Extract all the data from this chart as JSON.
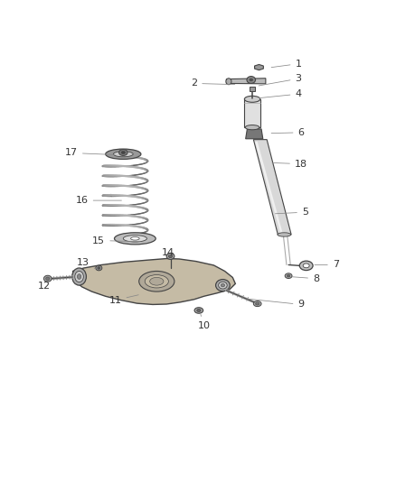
{
  "bg_color": "#ffffff",
  "line_color": "#444444",
  "label_color": "#333333",
  "leader_color": "#888888",
  "label_font": 8.0,
  "parts_labels": {
    "1": [
      0.68,
      0.94,
      0.755,
      0.95
    ],
    "2": [
      0.6,
      0.897,
      0.49,
      0.9
    ],
    "3": [
      0.648,
      0.893,
      0.755,
      0.912
    ],
    "4": [
      0.648,
      0.862,
      0.755,
      0.873
    ],
    "5": [
      0.69,
      0.568,
      0.772,
      0.572
    ],
    "6": [
      0.68,
      0.773,
      0.762,
      0.775
    ],
    "7": [
      0.79,
      0.438,
      0.85,
      0.438
    ],
    "8": [
      0.733,
      0.408,
      0.8,
      0.403
    ],
    "9": [
      0.62,
      0.352,
      0.762,
      0.337
    ],
    "10": [
      0.505,
      0.318,
      0.515,
      0.283
    ],
    "11": [
      0.355,
      0.363,
      0.29,
      0.348
    ],
    "12": [
      0.137,
      0.403,
      0.108,
      0.383
    ],
    "13": [
      0.24,
      0.428,
      0.208,
      0.443
    ],
    "14": [
      0.43,
      0.457,
      0.425,
      0.47
    ],
    "15": [
      0.36,
      0.497,
      0.248,
      0.5
    ],
    "16": [
      0.312,
      0.602,
      0.205,
      0.602
    ],
    "17": [
      0.295,
      0.718,
      0.178,
      0.723
    ],
    "18": [
      0.682,
      0.698,
      0.762,
      0.695
    ]
  }
}
